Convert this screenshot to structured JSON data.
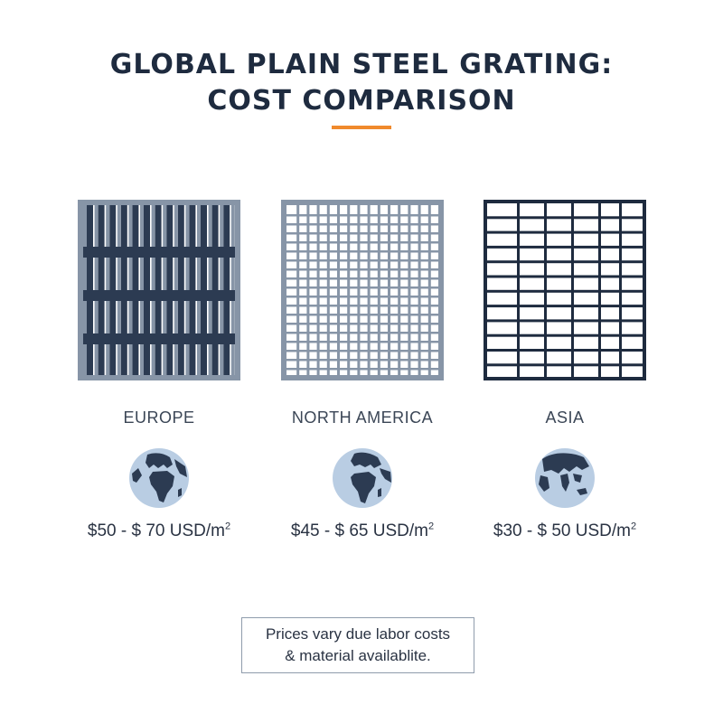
{
  "title": {
    "line1": "GLOBAL PLAIN STEEL GRATING:",
    "line2": "COST COMPARISON"
  },
  "colors": {
    "accent": "#f08a2c",
    "navy": "#1e2b3f",
    "steel": "#8795a7",
    "globe_ocean": "#b9cde3",
    "globe_land": "#2c3b52"
  },
  "regions": [
    {
      "name": "EUROPE",
      "price": "$50 - $ 70 USD/m",
      "unit_sup": "2",
      "globe_icon": "globe-europe-africa-icon"
    },
    {
      "name": "NORTH AMERICA",
      "price": "$45 - $ 65 USD/m",
      "unit_sup": "2",
      "globe_icon": "globe-europe-africa-icon"
    },
    {
      "name": "ASIA",
      "price": "$30 - $ 50 USD/m",
      "unit_sup": "2",
      "globe_icon": "globe-asia-icon"
    }
  ],
  "note": {
    "line1": "Prices vary due labor costs",
    "line2": "& material availablite."
  }
}
